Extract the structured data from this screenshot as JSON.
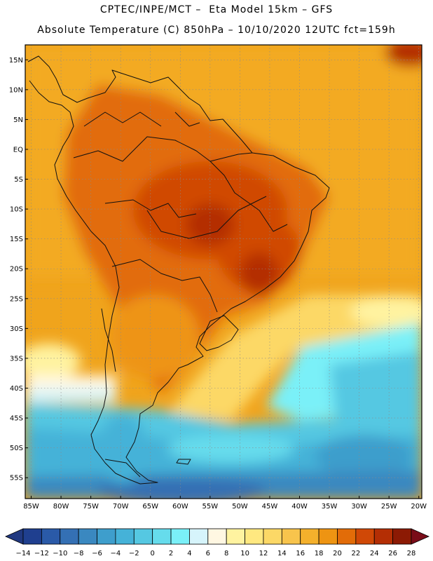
{
  "header": {
    "line1": "CPTEC/INPE/MCT –  Eta Model 15km – GFS",
    "line2": "Absolute Temperature (C) 850hPa – 10/10/2020 12UTC fct=159h"
  },
  "map": {
    "lat_labels": [
      "15N",
      "10N",
      "5N",
      "EQ",
      "5S",
      "10S",
      "15S",
      "20S",
      "25S",
      "30S",
      "35S",
      "40S",
      "45S",
      "50S",
      "55S"
    ],
    "lon_labels": [
      "85W",
      "80W",
      "75W",
      "70W",
      "65W",
      "60W",
      "55W",
      "50W",
      "45W",
      "40W",
      "35W",
      "30W",
      "25W",
      "20W"
    ]
  },
  "colorbar": {
    "labels": [
      "-14",
      "-12",
      "-10",
      "-8",
      "-6",
      "-4",
      "-2",
      "0",
      "2",
      "4",
      "6",
      "8",
      "10",
      "12",
      "14",
      "16",
      "18",
      "20",
      "22",
      "24",
      "26",
      "28"
    ],
    "colors": [
      "#1f3f8f",
      "#2a5aa8",
      "#3470b4",
      "#3a88c0",
      "#3e9ecc",
      "#45b2d8",
      "#55c8e2",
      "#66dcec",
      "#7af0f8",
      "#d6f4fb",
      "#fff7e2",
      "#fff3a0",
      "#ffe880",
      "#fcd866",
      "#f8c44c",
      "#f4b02c",
      "#ee9412",
      "#e26c08",
      "#d04806",
      "#b42e04",
      "#8c1a04"
    ],
    "under_color": "#203880",
    "over_color": "#7a0c18"
  }
}
